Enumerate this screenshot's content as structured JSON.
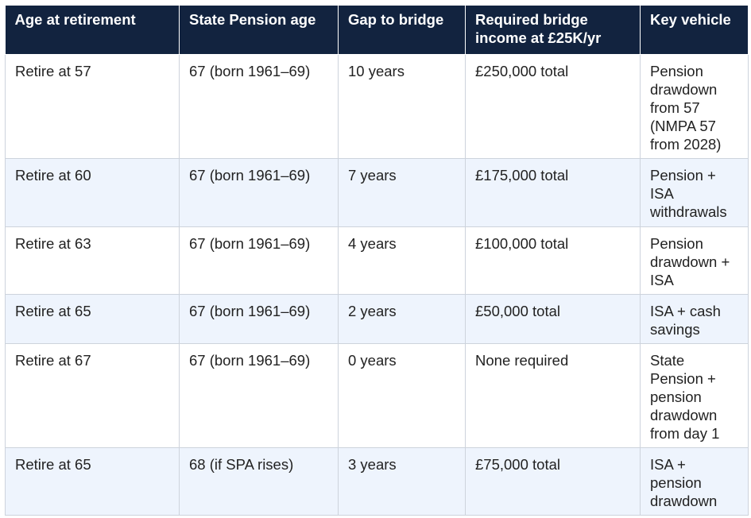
{
  "table": {
    "header": [
      "Age at retirement",
      "State Pension age",
      "Gap to bridge",
      "Required bridge income at £25K/yr",
      "Key vehicle"
    ],
    "rows": [
      [
        "Retire at 57",
        "67 (born 1961–69)",
        "10 years",
        "£250,000 total",
        "Pension drawdown from 57 (NMPA 57 from 2028)"
      ],
      [
        "Retire at 60",
        "67 (born 1961–69)",
        "7 years",
        "£175,000 total",
        "Pension + ISA withdrawals"
      ],
      [
        "Retire at 63",
        "67 (born 1961–69)",
        "4 years",
        "£100,000 total",
        "Pension drawdown + ISA"
      ],
      [
        "Retire at 65",
        "67 (born 1961–69)",
        "2 years",
        "£50,000 total",
        "ISA + cash savings"
      ],
      [
        "Retire at 67",
        "67 (born 1961–69)",
        "0 years",
        "None required",
        "State Pension + pension drawdown from day 1"
      ],
      [
        "Retire at 65",
        "68 (if SPA rises)",
        "3 years",
        "£75,000 total",
        "ISA + pension drawdown"
      ]
    ]
  }
}
